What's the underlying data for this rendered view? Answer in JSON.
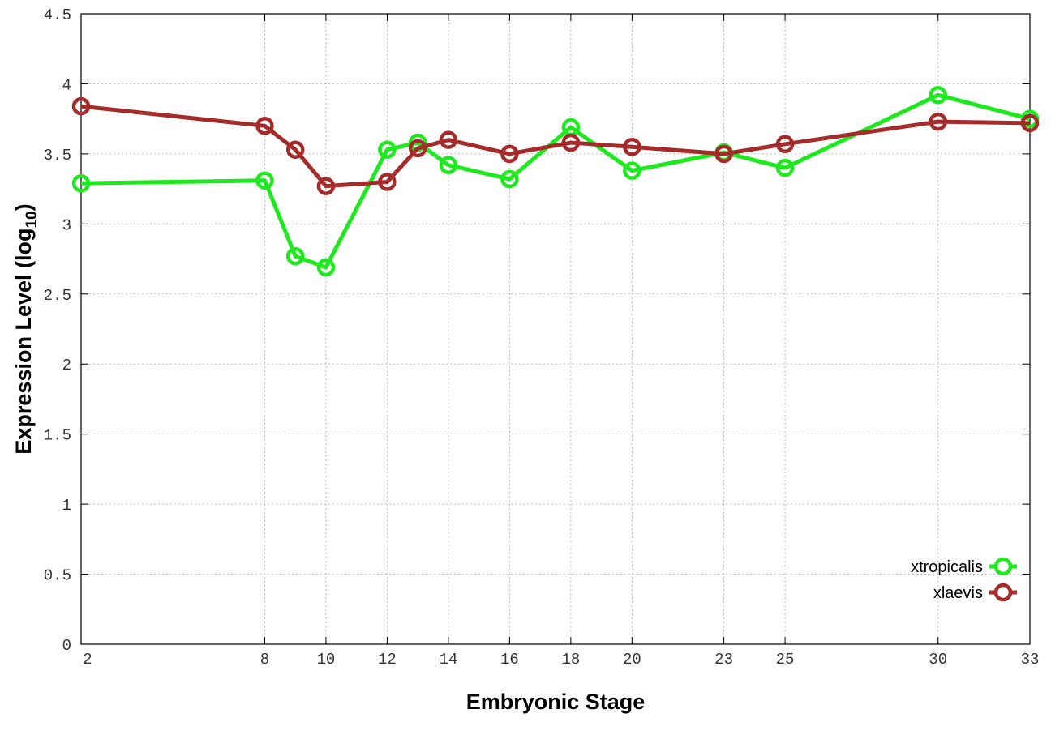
{
  "chart_data": {
    "type": "line",
    "title": "",
    "xlabel": "Embryonic Stage",
    "ylabel": "Expression Level (log",
    "ylabel_subscript": "10",
    "ylabel_suffix": ")",
    "x": [
      2,
      8,
      9,
      10,
      12,
      13,
      14,
      16,
      18,
      20,
      23,
      25,
      30,
      33
    ],
    "xticks": [
      2,
      8,
      10,
      12,
      14,
      16,
      18,
      20,
      23,
      25,
      30,
      33
    ],
    "xtick_labels": [
      "2",
      "8",
      "10",
      "12",
      "14",
      "16",
      "18",
      "20",
      "23",
      "25",
      "30",
      "33"
    ],
    "xlim": [
      2,
      33
    ],
    "ylim": [
      0,
      4.5
    ],
    "yticks": [
      0,
      0.5,
      1,
      1.5,
      2,
      2.5,
      3,
      3.5,
      4,
      4.5
    ],
    "ytick_labels": [
      "0",
      "0.5",
      "1",
      "1.5",
      "2",
      "2.5",
      "3",
      "3.5",
      "4",
      "4.5"
    ],
    "grid": true,
    "legend_position": "bottom-right",
    "series": [
      {
        "name": "xtropicalis",
        "color": "#1ee81e",
        "values": [
          3.29,
          3.31,
          2.77,
          2.69,
          3.53,
          3.58,
          3.42,
          3.32,
          3.69,
          3.38,
          3.51,
          3.4,
          3.92,
          3.75
        ]
      },
      {
        "name": "xlaevis",
        "color": "#a52a2a",
        "values": [
          3.84,
          3.7,
          3.53,
          3.27,
          3.3,
          3.54,
          3.6,
          3.5,
          3.58,
          3.55,
          3.5,
          3.57,
          3.73,
          3.72
        ]
      }
    ]
  }
}
